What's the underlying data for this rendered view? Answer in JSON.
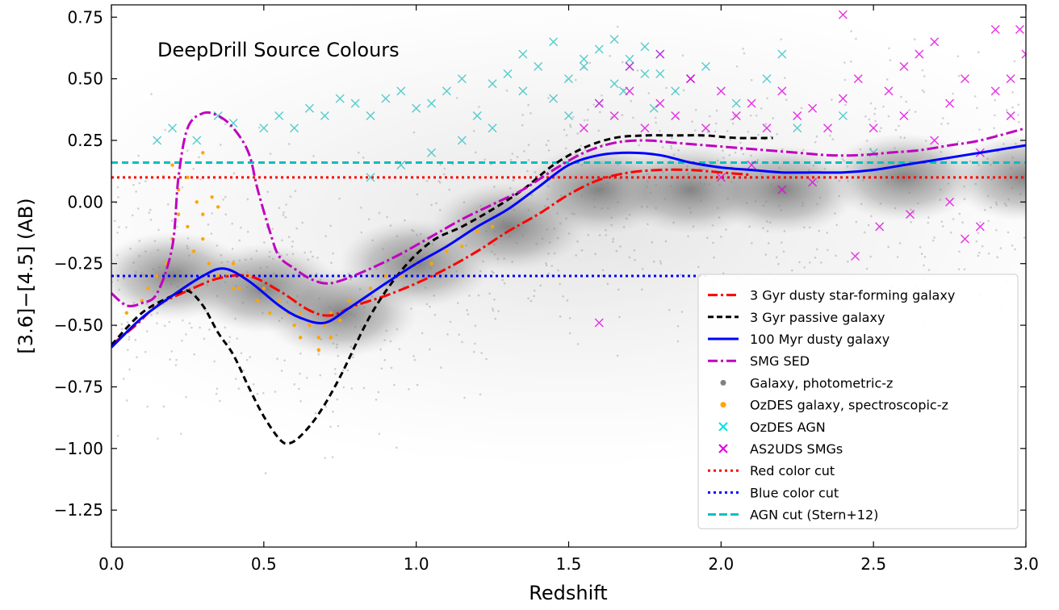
{
  "chart_data": {
    "type": "scatter",
    "title": "DeepDrill Source Colours",
    "xlabel": "Redshift",
    "ylabel": "[3.6]−[4.5] (AB)",
    "xlim": [
      0.0,
      3.0
    ],
    "ylim": [
      -1.4,
      0.8
    ],
    "xticks": [
      0.0,
      0.5,
      1.0,
      1.5,
      2.0,
      2.5,
      3.0
    ],
    "xtick_labels": [
      "0.0",
      "0.5",
      "1.0",
      "1.5",
      "2.0",
      "2.5",
      "3.0"
    ],
    "yticks": [
      0.75,
      0.5,
      0.25,
      0.0,
      -0.25,
      -0.5,
      -0.75,
      -1.0,
      -1.25
    ],
    "ytick_labels": [
      "0.75",
      "0.50",
      "0.25",
      "0.00",
      "−0.25",
      "−0.50",
      "−0.75",
      "−1.00",
      "−1.25"
    ],
    "grid": false,
    "legend_position": "lower-right",
    "series": [
      {
        "name": "3 Gyr dusty star-forming galaxy",
        "kind": "line",
        "style": "dashdot",
        "color": "#ff0000",
        "x": [
          0.0,
          0.08,
          0.15,
          0.25,
          0.35,
          0.45,
          0.55,
          0.65,
          0.72,
          0.8,
          0.9,
          1.0,
          1.1,
          1.2,
          1.3,
          1.4,
          1.5,
          1.6,
          1.7,
          1.8,
          1.9,
          2.0,
          2.1
        ],
        "y": [
          -0.58,
          -0.5,
          -0.42,
          -0.36,
          -0.31,
          -0.3,
          -0.36,
          -0.44,
          -0.46,
          -0.42,
          -0.38,
          -0.33,
          -0.27,
          -0.2,
          -0.12,
          -0.05,
          0.03,
          0.09,
          0.12,
          0.13,
          0.13,
          0.12,
          0.11
        ]
      },
      {
        "name": "3 Gyr passive galaxy",
        "kind": "line",
        "style": "dashed",
        "color": "#000000",
        "x": [
          0.0,
          0.1,
          0.2,
          0.25,
          0.3,
          0.35,
          0.4,
          0.45,
          0.5,
          0.55,
          0.58,
          0.62,
          0.68,
          0.75,
          0.85,
          0.95,
          1.05,
          1.15,
          1.25,
          1.35,
          1.45,
          1.55,
          1.65,
          1.75,
          1.85,
          1.95,
          2.05,
          2.17
        ],
        "y": [
          -0.58,
          -0.45,
          -0.38,
          -0.36,
          -0.42,
          -0.53,
          -0.62,
          -0.75,
          -0.87,
          -0.96,
          -0.98,
          -0.95,
          -0.86,
          -0.71,
          -0.46,
          -0.28,
          -0.16,
          -0.1,
          -0.03,
          0.05,
          0.15,
          0.22,
          0.26,
          0.27,
          0.27,
          0.27,
          0.26,
          0.26
        ]
      },
      {
        "name": "100 Myr dusty galaxy",
        "kind": "line",
        "style": "solid",
        "color": "#0000ff",
        "x": [
          0.0,
          0.1,
          0.2,
          0.3,
          0.37,
          0.45,
          0.55,
          0.62,
          0.7,
          0.78,
          0.9,
          1.0,
          1.1,
          1.2,
          1.3,
          1.4,
          1.5,
          1.6,
          1.7,
          1.8,
          1.9,
          2.0,
          2.1,
          2.2,
          2.3,
          2.4,
          2.5,
          2.6,
          2.7,
          2.8,
          2.9,
          3.0
        ],
        "y": [
          -0.59,
          -0.47,
          -0.38,
          -0.3,
          -0.27,
          -0.32,
          -0.42,
          -0.47,
          -0.49,
          -0.43,
          -0.33,
          -0.25,
          -0.18,
          -0.1,
          -0.03,
          0.06,
          0.15,
          0.19,
          0.2,
          0.19,
          0.16,
          0.14,
          0.13,
          0.12,
          0.12,
          0.12,
          0.13,
          0.15,
          0.17,
          0.19,
          0.21,
          0.23
        ]
      },
      {
        "name": "SMG SED",
        "kind": "line",
        "style": "dashdot",
        "color": "#c000c0",
        "x": [
          0.0,
          0.05,
          0.1,
          0.15,
          0.2,
          0.22,
          0.25,
          0.3,
          0.35,
          0.4,
          0.45,
          0.48,
          0.52,
          0.55,
          0.6,
          0.65,
          0.7,
          0.75,
          0.85,
          0.95,
          1.05,
          1.15,
          1.25,
          1.35,
          1.45,
          1.55,
          1.65,
          1.75,
          1.85,
          1.95,
          2.05,
          2.15,
          2.25,
          2.35,
          2.45,
          2.55,
          2.65,
          2.75,
          2.85,
          3.0
        ],
        "y": [
          -0.37,
          -0.42,
          -0.41,
          -0.37,
          -0.18,
          0.1,
          0.3,
          0.36,
          0.35,
          0.3,
          0.2,
          0.05,
          -0.12,
          -0.22,
          -0.27,
          -0.31,
          -0.33,
          -0.32,
          -0.27,
          -0.21,
          -0.14,
          -0.07,
          -0.01,
          0.05,
          0.13,
          0.2,
          0.24,
          0.25,
          0.24,
          0.23,
          0.22,
          0.21,
          0.2,
          0.19,
          0.19,
          0.2,
          0.21,
          0.23,
          0.25,
          0.3
        ]
      },
      {
        "name": "Galaxy, photometric-z",
        "kind": "density",
        "color": "#808080",
        "description_points": [
          [
            0.2,
            -0.3
          ],
          [
            0.5,
            -0.35
          ],
          [
            0.75,
            -0.45
          ],
          [
            1.0,
            -0.25
          ],
          [
            1.3,
            -0.1
          ],
          [
            1.6,
            0.05
          ],
          [
            1.9,
            0.05
          ],
          [
            2.2,
            0.05
          ],
          [
            2.6,
            0.1
          ],
          [
            3.0,
            0.1
          ]
        ]
      },
      {
        "name": "OzDES galaxy, spectroscopic-z",
        "kind": "scatter",
        "marker": "dot",
        "color": "#ffa500",
        "x": [
          0.05,
          0.1,
          0.12,
          0.15,
          0.18,
          0.2,
          0.22,
          0.25,
          0.27,
          0.3,
          0.32,
          0.35,
          0.38,
          0.4,
          0.42,
          0.45,
          0.48,
          0.5,
          0.52,
          0.55,
          0.58,
          0.6,
          0.62,
          0.65,
          0.68,
          0.7,
          0.72,
          0.75,
          0.78,
          0.8,
          0.85,
          0.9,
          0.95,
          1.0,
          1.05,
          1.1,
          1.15,
          1.2,
          1.25,
          0.22,
          0.25,
          0.28,
          0.3,
          0.33,
          0.35,
          0.2,
          0.3,
          0.4,
          0.62,
          0.68,
          0.72
        ],
        "y": [
          -0.45,
          -0.4,
          -0.35,
          -0.3,
          -0.25,
          -0.15,
          -0.05,
          -0.1,
          -0.2,
          -0.15,
          -0.25,
          -0.3,
          -0.3,
          -0.25,
          -0.35,
          -0.3,
          -0.4,
          -0.35,
          -0.45,
          -0.4,
          -0.45,
          -0.5,
          -0.45,
          -0.5,
          -0.55,
          -0.5,
          -0.45,
          -0.48,
          -0.4,
          -0.42,
          -0.35,
          -0.3,
          -0.3,
          -0.25,
          -0.25,
          -0.2,
          -0.18,
          -0.12,
          -0.1,
          0.05,
          0.1,
          0.0,
          -0.05,
          0.02,
          -0.02,
          0.15,
          0.2,
          -0.35,
          -0.55,
          -0.6,
          -0.55
        ]
      },
      {
        "name": "OzDES AGN",
        "kind": "scatter",
        "marker": "x",
        "color": "#30c0c0",
        "x": [
          0.15,
          0.2,
          0.28,
          0.35,
          0.4,
          0.5,
          0.55,
          0.6,
          0.65,
          0.7,
          0.75,
          0.8,
          0.85,
          0.9,
          0.95,
          1.0,
          1.05,
          1.1,
          1.15,
          1.2,
          1.25,
          1.3,
          1.35,
          1.4,
          1.45,
          1.5,
          1.55,
          1.6,
          1.65,
          1.7,
          1.75,
          1.8,
          1.85,
          1.9,
          1.95,
          2.05,
          2.15,
          2.25,
          1.35,
          1.45,
          1.55,
          1.65,
          1.7,
          1.75,
          1.8,
          1.25,
          1.15,
          1.05,
          0.95,
          0.85,
          1.5,
          1.6,
          1.68,
          1.78,
          2.4,
          2.5,
          2.2
        ],
        "y": [
          0.25,
          0.3,
          0.25,
          0.35,
          0.32,
          0.3,
          0.35,
          0.3,
          0.38,
          0.35,
          0.42,
          0.4,
          0.35,
          0.42,
          0.45,
          0.38,
          0.4,
          0.45,
          0.5,
          0.35,
          0.48,
          0.52,
          0.45,
          0.55,
          0.42,
          0.5,
          0.55,
          0.62,
          0.48,
          0.58,
          0.52,
          0.6,
          0.45,
          0.5,
          0.55,
          0.4,
          0.5,
          0.3,
          0.6,
          0.65,
          0.58,
          0.66,
          0.55,
          0.63,
          0.52,
          0.3,
          0.25,
          0.2,
          0.15,
          0.1,
          0.35,
          0.4,
          0.45,
          0.38,
          0.35,
          0.2,
          0.6
        ]
      },
      {
        "name": "AS2UDS SMGs",
        "kind": "scatter",
        "marker": "x",
        "color": "#e000e0",
        "x": [
          1.55,
          1.6,
          1.65,
          1.7,
          1.75,
          1.8,
          1.85,
          1.9,
          1.95,
          2.0,
          2.05,
          2.1,
          2.15,
          2.2,
          2.25,
          2.3,
          2.35,
          2.4,
          2.45,
          2.5,
          2.55,
          2.6,
          2.65,
          2.7,
          2.75,
          2.8,
          2.85,
          2.9,
          2.95,
          3.0,
          1.6,
          2.44,
          2.52,
          2.62,
          2.75,
          2.8,
          2.85,
          2.98,
          1.7,
          1.8,
          1.9,
          2.0,
          2.1,
          2.2,
          2.3,
          2.4,
          2.6,
          2.7,
          2.9,
          2.95
        ],
        "y": [
          0.3,
          0.4,
          0.35,
          0.45,
          0.3,
          0.4,
          0.35,
          0.5,
          0.3,
          0.45,
          0.35,
          0.4,
          0.3,
          0.45,
          0.35,
          0.38,
          0.3,
          0.42,
          0.5,
          0.3,
          0.45,
          0.35,
          0.6,
          0.25,
          0.4,
          0.5,
          0.2,
          0.45,
          0.35,
          0.6,
          -0.49,
          -0.22,
          -0.1,
          -0.05,
          0.0,
          -0.15,
          -0.1,
          0.7,
          0.55,
          0.6,
          0.5,
          0.1,
          0.15,
          0.05,
          0.08,
          0.76,
          0.55,
          0.65,
          0.7,
          0.5
        ]
      }
    ],
    "reference_lines": [
      {
        "name": "Red color cut",
        "orientation": "horizontal",
        "y": 0.1,
        "style": "dotted",
        "color": "#ff0000"
      },
      {
        "name": "Blue color cut",
        "orientation": "horizontal",
        "y": -0.3,
        "x_max": 1.95,
        "style": "dotted",
        "color": "#0000ff"
      },
      {
        "name": "AGN cut (Stern+12)",
        "orientation": "horizontal",
        "y": 0.16,
        "style": "dashed",
        "color": "#00bfbf"
      }
    ],
    "legend": [
      {
        "label": "3 Gyr dusty star-forming galaxy",
        "kind": "line",
        "color": "#ff0000",
        "dash": "12,4,3,4"
      },
      {
        "label": "3 Gyr passive galaxy",
        "kind": "line",
        "color": "#000000",
        "dash": "7,4"
      },
      {
        "label": "100 Myr dusty galaxy",
        "kind": "line",
        "color": "#0000ff",
        "dash": ""
      },
      {
        "label": "SMG SED",
        "kind": "line",
        "color": "#c000c0",
        "dash": "12,4,3,4"
      },
      {
        "label": "Galaxy, photometric-z",
        "kind": "dot",
        "color": "#808080",
        "dash": ""
      },
      {
        "label": "OzDES galaxy, spectroscopic-z",
        "kind": "dot",
        "color": "#ffa500",
        "dash": ""
      },
      {
        "label": "OzDES AGN",
        "kind": "x",
        "color": "#00e0e0",
        "dash": ""
      },
      {
        "label": "AS2UDS SMGs",
        "kind": "x",
        "color": "#e000e0",
        "dash": ""
      },
      {
        "label": "Red color cut",
        "kind": "line",
        "color": "#ff0000",
        "dash": "3,4"
      },
      {
        "label": "Blue color cut",
        "kind": "line",
        "color": "#0000ff",
        "dash": "3,4"
      },
      {
        "label": "AGN cut (Stern+12)",
        "kind": "line",
        "color": "#00bfbf",
        "dash": "10,4"
      }
    ]
  }
}
